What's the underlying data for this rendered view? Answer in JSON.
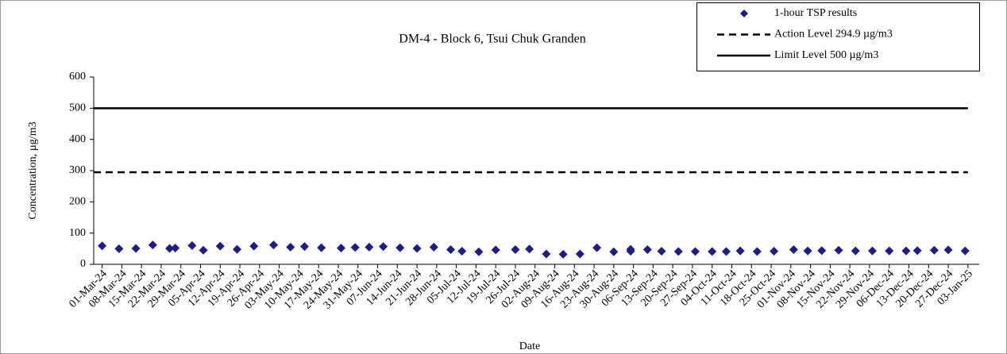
{
  "chart_data": {
    "type": "scatter",
    "title": "DM-4 - Block 6, Tsui Chuk Granden",
    "x_label": "Date",
    "y_label": "Concentration, µg/m3",
    "ylim": [
      0,
      600
    ],
    "yticks": [
      0,
      100,
      200,
      300,
      400,
      500,
      600
    ],
    "xlim": [
      "2024-02-27",
      "2025-01-07"
    ],
    "xticks": [
      {
        "value": "2024-03-01",
        "label": "01-Mar-24"
      },
      {
        "value": "2024-03-08",
        "label": "08-Mar-24"
      },
      {
        "value": "2024-03-15",
        "label": "15-Mar-24"
      },
      {
        "value": "2024-03-22",
        "label": "22-Mar-24"
      },
      {
        "value": "2024-03-29",
        "label": "29-Mar-24"
      },
      {
        "value": "2024-04-05",
        "label": "05-Apr-24"
      },
      {
        "value": "2024-04-12",
        "label": "12-Apr-24"
      },
      {
        "value": "2024-04-19",
        "label": "19-Apr-24"
      },
      {
        "value": "2024-04-26",
        "label": "26-Apr-24"
      },
      {
        "value": "2024-05-03",
        "label": "03-May-24"
      },
      {
        "value": "2024-05-10",
        "label": "10-May-24"
      },
      {
        "value": "2024-05-17",
        "label": "17-May-24"
      },
      {
        "value": "2024-05-24",
        "label": "24-May-24"
      },
      {
        "value": "2024-05-31",
        "label": "31-May-24"
      },
      {
        "value": "2024-06-07",
        "label": "07-Jun-24"
      },
      {
        "value": "2024-06-14",
        "label": "14-Jun-24"
      },
      {
        "value": "2024-06-21",
        "label": "21-Jun-24"
      },
      {
        "value": "2024-06-28",
        "label": "28-Jun-24"
      },
      {
        "value": "2024-07-05",
        "label": "05-Jul-24"
      },
      {
        "value": "2024-07-12",
        "label": "12-Jul-24"
      },
      {
        "value": "2024-07-19",
        "label": "19-Jul-24"
      },
      {
        "value": "2024-07-26",
        "label": "26-Jul-24"
      },
      {
        "value": "2024-08-02",
        "label": "02-Aug-24"
      },
      {
        "value": "2024-08-09",
        "label": "09-Aug-24"
      },
      {
        "value": "2024-08-16",
        "label": "16-Aug-24"
      },
      {
        "value": "2024-08-23",
        "label": "23-Aug-24"
      },
      {
        "value": "2024-08-30",
        "label": "30-Aug-24"
      },
      {
        "value": "2024-09-06",
        "label": "06-Sep-24"
      },
      {
        "value": "2024-09-13",
        "label": "13-Sep-24"
      },
      {
        "value": "2024-09-20",
        "label": "20-Sep-24"
      },
      {
        "value": "2024-09-27",
        "label": "27-Sep-24"
      },
      {
        "value": "2024-10-04",
        "label": "04-Oct-24"
      },
      {
        "value": "2024-10-11",
        "label": "11-Oct-24"
      },
      {
        "value": "2024-10-18",
        "label": "18-Oct-24"
      },
      {
        "value": "2024-10-25",
        "label": "25-Oct-24"
      },
      {
        "value": "2024-11-01",
        "label": "01-Nov-24"
      },
      {
        "value": "2024-11-08",
        "label": "08-Nov-24"
      },
      {
        "value": "2024-11-15",
        "label": "15-Nov-24"
      },
      {
        "value": "2024-11-22",
        "label": "22-Nov-24"
      },
      {
        "value": "2024-11-29",
        "label": "29-Nov-24"
      },
      {
        "value": "2024-12-06",
        "label": "06-Dec-24"
      },
      {
        "value": "2024-12-13",
        "label": "13-Dec-24"
      },
      {
        "value": "2024-12-20",
        "label": "20-Dec-24"
      },
      {
        "value": "2024-12-27",
        "label": "27-Dec-24"
      },
      {
        "value": "2025-01-03",
        "label": "03-Jan-25"
      }
    ],
    "series": [
      {
        "name": "1-hour TSP results",
        "color": "#1c1c8c",
        "marker": "diamond",
        "x": [
          "2024-03-01",
          "2024-03-07",
          "2024-03-13",
          "2024-03-19",
          "2024-03-25",
          "2024-03-27",
          "2024-04-02",
          "2024-04-06",
          "2024-04-12",
          "2024-04-18",
          "2024-04-24",
          "2024-05-01",
          "2024-05-07",
          "2024-05-12",
          "2024-05-18",
          "2024-05-25",
          "2024-05-30",
          "2024-06-04",
          "2024-06-09",
          "2024-06-15",
          "2024-06-21",
          "2024-06-27",
          "2024-07-03",
          "2024-07-07",
          "2024-07-13",
          "2024-07-19",
          "2024-07-26",
          "2024-07-31",
          "2024-08-06",
          "2024-08-12",
          "2024-08-18",
          "2024-08-24",
          "2024-08-30",
          "2024-09-05",
          "2024-09-05",
          "2024-09-11",
          "2024-09-16",
          "2024-09-22",
          "2024-09-28",
          "2024-10-04",
          "2024-10-09",
          "2024-10-14",
          "2024-10-20",
          "2024-10-26",
          "2024-11-02",
          "2024-11-07",
          "2024-11-12",
          "2024-11-18",
          "2024-11-24",
          "2024-11-30",
          "2024-12-06",
          "2024-12-12",
          "2024-12-16",
          "2024-12-22",
          "2024-12-27",
          "2025-01-02"
        ],
        "values": [
          59,
          50,
          51,
          62,
          51,
          52,
          60,
          45,
          58,
          48,
          58,
          62,
          55,
          57,
          53,
          52,
          54,
          55,
          57,
          53,
          51,
          55,
          47,
          42,
          40,
          46,
          47,
          49,
          33,
          32,
          33,
          53,
          40,
          42,
          48,
          47,
          42,
          41,
          41,
          41,
          41,
          43,
          41,
          42,
          47,
          43,
          44,
          45,
          43,
          43,
          43,
          43,
          44,
          45,
          46,
          43
        ]
      },
      {
        "name": "Action Level 294.9 µg/m3",
        "color": "#000000",
        "style": "dashed",
        "values": [
          294.9
        ]
      },
      {
        "name": "Limit Level 500 µg/m3",
        "color": "#000000",
        "style": "solid",
        "values": [
          500
        ]
      }
    ]
  }
}
